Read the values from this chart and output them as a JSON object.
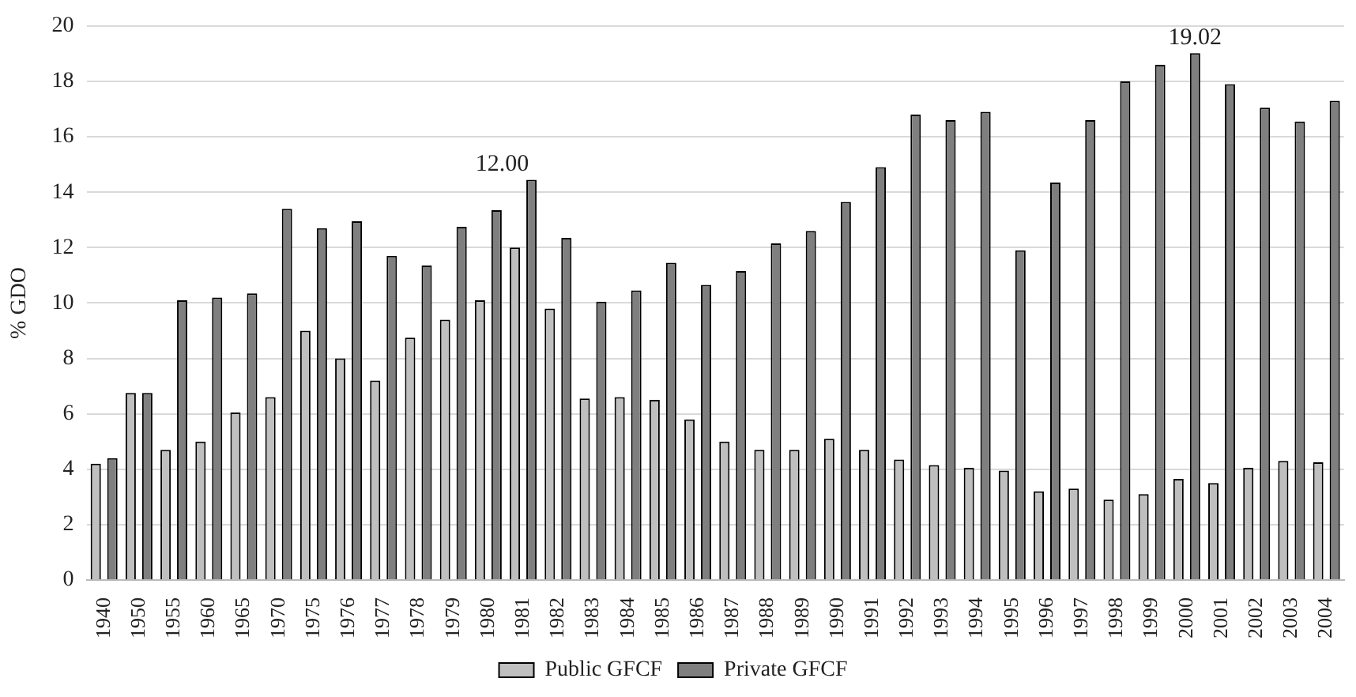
{
  "chart_data": {
    "type": "bar",
    "ylabel": "% GDO",
    "categories": [
      "1940",
      "1950",
      "1955",
      "1960",
      "1965",
      "1970",
      "1975",
      "1976",
      "1977",
      "1978",
      "1979",
      "1980",
      "1981",
      "1982",
      "1983",
      "1984",
      "1985",
      "1986",
      "1987",
      "1988",
      "1989",
      "1990",
      "1991",
      "1992",
      "1993",
      "1994",
      "1995",
      "1996",
      "1997",
      "1998",
      "1999",
      "2000",
      "2001",
      "2002",
      "2003",
      "2004"
    ],
    "series": [
      {
        "name": "Public GFCF",
        "color": "#bfbfbf",
        "values": [
          4.2,
          6.75,
          4.7,
          5.0,
          6.05,
          6.6,
          9.0,
          8.0,
          7.2,
          8.75,
          9.4,
          10.1,
          12.0,
          9.8,
          6.55,
          6.6,
          6.5,
          5.8,
          5.0,
          4.7,
          4.7,
          5.1,
          4.7,
          4.35,
          4.15,
          4.05,
          3.95,
          3.2,
          3.3,
          2.9,
          3.1,
          3.65,
          3.5,
          4.05,
          4.3,
          4.25
        ],
        "value_labels": [
          null,
          null,
          null,
          null,
          null,
          null,
          null,
          null,
          null,
          null,
          null,
          null,
          "12.00",
          null,
          null,
          null,
          null,
          null,
          null,
          null,
          null,
          null,
          null,
          null,
          null,
          null,
          null,
          null,
          null,
          null,
          null,
          null,
          null,
          null,
          null,
          null
        ]
      },
      {
        "name": "Private GFCF",
        "color": "#7f7f80",
        "values": [
          4.4,
          6.75,
          10.1,
          10.2,
          10.35,
          13.4,
          12.7,
          12.95,
          11.7,
          11.35,
          12.75,
          13.35,
          14.45,
          12.35,
          10.05,
          10.45,
          11.45,
          10.65,
          11.15,
          12.15,
          12.6,
          13.65,
          14.9,
          16.8,
          16.6,
          16.9,
          11.9,
          14.35,
          16.6,
          18.0,
          18.6,
          19.02,
          17.9,
          17.05,
          16.55,
          17.3
        ],
        "value_labels": [
          null,
          null,
          null,
          null,
          null,
          null,
          null,
          null,
          null,
          null,
          null,
          null,
          null,
          null,
          null,
          null,
          null,
          null,
          null,
          null,
          null,
          null,
          null,
          null,
          null,
          null,
          null,
          null,
          null,
          null,
          null,
          "19.02",
          null,
          null,
          null,
          null
        ]
      }
    ],
    "ylim": [
      0,
      20
    ],
    "yticks": [
      0,
      2,
      4,
      6,
      8,
      10,
      12,
      14,
      16,
      18,
      20
    ],
    "grid": "y",
    "legend": "bottom"
  }
}
